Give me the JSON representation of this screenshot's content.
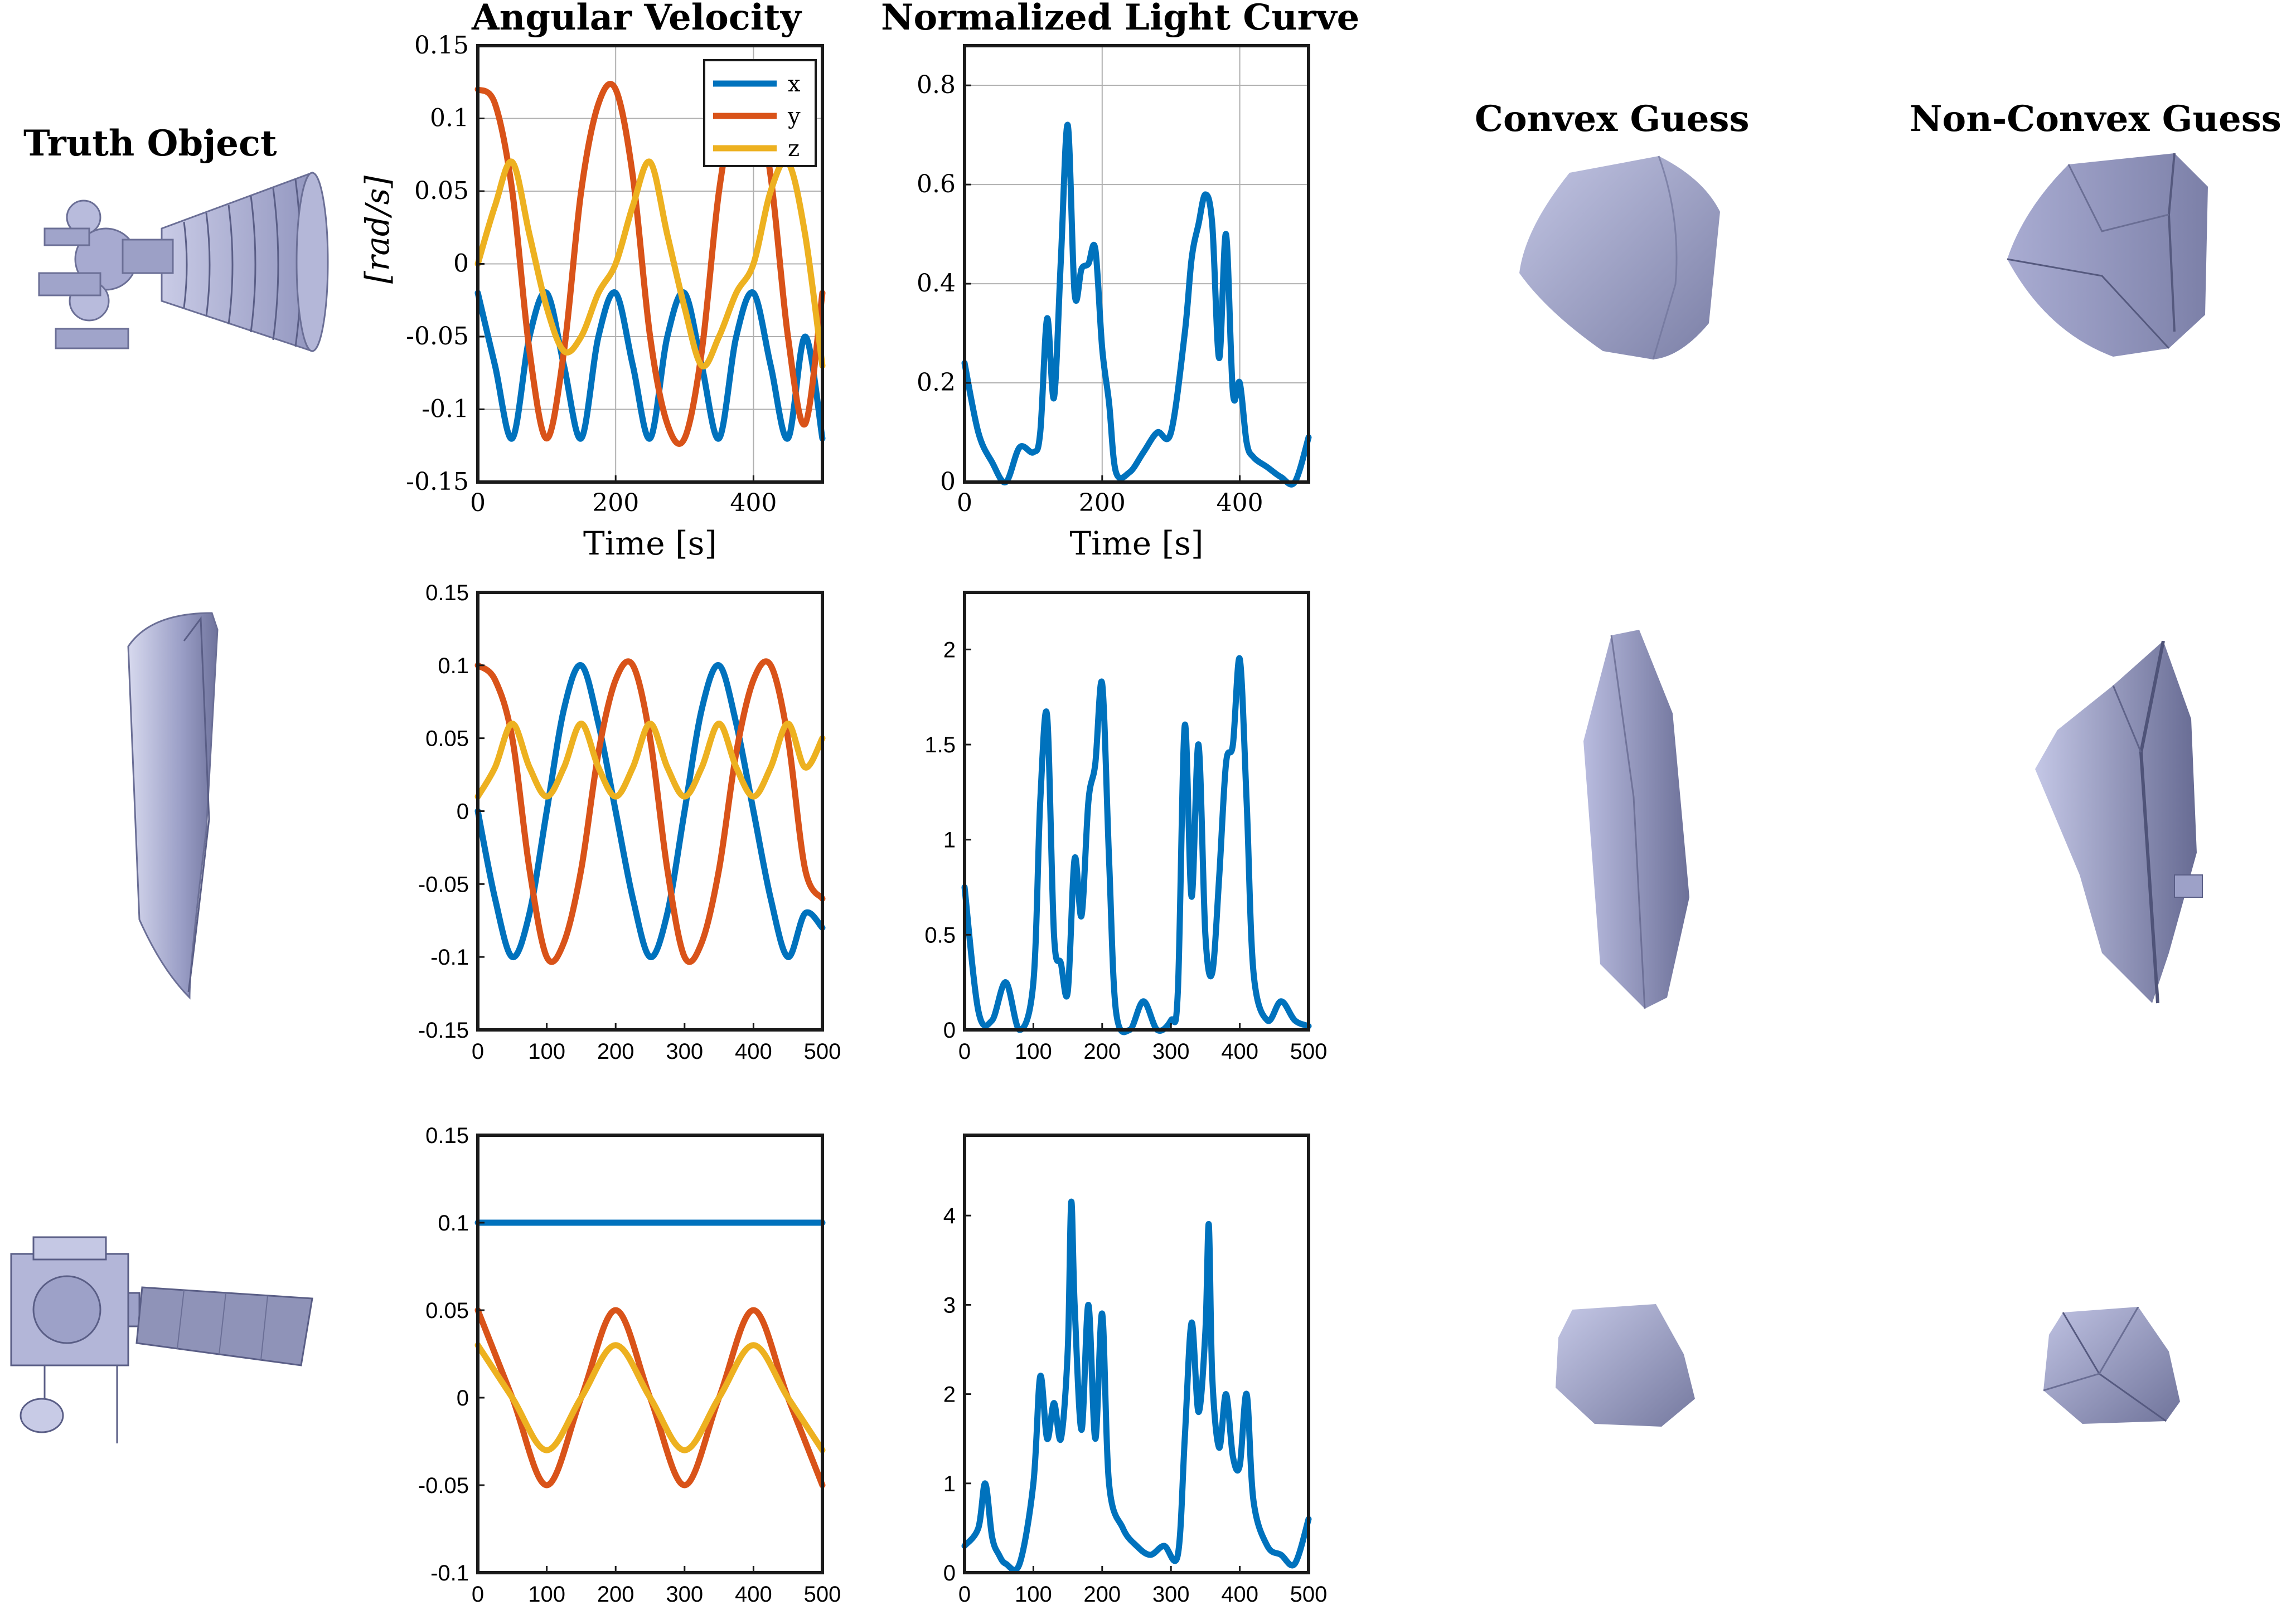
{
  "headers": {
    "truth": "Truth Object",
    "angular": "Angular Velocity",
    "light": "Normalized Light Curve",
    "convex": "Convex Guess",
    "nonconvex": "Non-Convex Guess"
  },
  "colors": {
    "x": "#0072BD",
    "y": "#D95319",
    "z": "#EDB120",
    "light": "#0072BD",
    "shape": "#9FA3C9",
    "shape_dark": "#5C607F"
  },
  "shape_icons": [
    "rocket-engine-icon",
    "rocket-fairing-icon",
    "satellite-icon",
    "convex-hull-icon",
    "non-convex-hull-icon"
  ],
  "chart_data": [
    {
      "type": "line",
      "row": 1,
      "panel": "angular-velocity",
      "xlabel": "Time [s]",
      "ylabel": "[rad/s]",
      "xlim": [
        0,
        500
      ],
      "ylim": [
        -0.15,
        0.15
      ],
      "xticks": [
        "0",
        "200",
        "400"
      ],
      "yticks": [
        "0.15",
        "0.1",
        "0.05",
        "0",
        "-0.05",
        "-0.1",
        "-0.15"
      ],
      "grid": true,
      "legend": "top-right",
      "x": [
        0,
        25,
        50,
        75,
        100,
        125,
        150,
        175,
        200,
        225,
        250,
        275,
        300,
        325,
        350,
        375,
        400,
        425,
        450,
        475,
        500
      ],
      "series": [
        {
          "name": "x",
          "values": [
            -0.02,
            -0.07,
            -0.12,
            -0.05,
            -0.02,
            -0.07,
            -0.12,
            -0.05,
            -0.02,
            -0.07,
            -0.12,
            -0.05,
            -0.02,
            -0.07,
            -0.12,
            -0.05,
            -0.02,
            -0.07,
            -0.12,
            -0.05,
            -0.12
          ]
        },
        {
          "name": "y",
          "values": [
            0.12,
            0.11,
            0.05,
            -0.06,
            -0.12,
            -0.06,
            0.05,
            0.11,
            0.12,
            0.06,
            -0.05,
            -0.11,
            -0.12,
            -0.06,
            0.05,
            0.11,
            0.12,
            0.06,
            -0.05,
            -0.11,
            -0.02
          ]
        },
        {
          "name": "z",
          "values": [
            0.0,
            0.04,
            0.07,
            0.02,
            -0.03,
            -0.06,
            -0.05,
            -0.02,
            0.0,
            0.04,
            0.07,
            0.02,
            -0.03,
            -0.07,
            -0.05,
            -0.02,
            0.0,
            0.05,
            0.07,
            0.02,
            -0.07
          ]
        }
      ]
    },
    {
      "type": "line",
      "row": 1,
      "panel": "light-curve",
      "xlabel": "Time [s]",
      "ylabel": "",
      "xlim": [
        0,
        500
      ],
      "ylim": [
        0,
        0.88
      ],
      "xticks": [
        "0",
        "200",
        "400"
      ],
      "yticks": [
        "0.8",
        "0.6",
        "0.4",
        "0.2",
        "0"
      ],
      "grid": true,
      "x": [
        0,
        20,
        40,
        60,
        80,
        100,
        110,
        120,
        130,
        140,
        150,
        160,
        170,
        180,
        190,
        200,
        210,
        220,
        240,
        260,
        280,
        300,
        320,
        330,
        340,
        350,
        360,
        370,
        380,
        390,
        400,
        410,
        420,
        440,
        460,
        480,
        500
      ],
      "series": [
        {
          "name": "",
          "values": [
            0.24,
            0.1,
            0.04,
            0.0,
            0.07,
            0.06,
            0.1,
            0.33,
            0.17,
            0.45,
            0.72,
            0.38,
            0.43,
            0.44,
            0.47,
            0.27,
            0.16,
            0.02,
            0.02,
            0.06,
            0.1,
            0.1,
            0.3,
            0.45,
            0.52,
            0.58,
            0.52,
            0.25,
            0.5,
            0.18,
            0.2,
            0.08,
            0.05,
            0.03,
            0.01,
            0.0,
            0.09
          ]
        }
      ]
    },
    {
      "type": "line",
      "row": 2,
      "panel": "angular-velocity",
      "xlim": [
        0,
        500
      ],
      "ylim": [
        -0.15,
        0.15
      ],
      "xticks": [
        "0",
        "100",
        "200",
        "300",
        "400",
        "500"
      ],
      "yticks": [
        "0.15",
        "0.1",
        "0.05",
        "0",
        "-0.05",
        "-0.1",
        "-0.15"
      ],
      "grid": false,
      "x": [
        0,
        25,
        50,
        75,
        100,
        125,
        150,
        175,
        200,
        225,
        250,
        275,
        300,
        325,
        350,
        375,
        400,
        425,
        450,
        475,
        500
      ],
      "series": [
        {
          "name": "x",
          "values": [
            0.0,
            -0.06,
            -0.1,
            -0.07,
            0.0,
            0.07,
            0.1,
            0.06,
            0.0,
            -0.06,
            -0.1,
            -0.07,
            0.0,
            0.07,
            0.1,
            0.06,
            0.0,
            -0.06,
            -0.1,
            -0.07,
            -0.08
          ]
        },
        {
          "name": "y",
          "values": [
            0.1,
            0.09,
            0.05,
            -0.04,
            -0.1,
            -0.09,
            -0.04,
            0.04,
            0.09,
            0.1,
            0.05,
            -0.04,
            -0.1,
            -0.09,
            -0.04,
            0.04,
            0.09,
            0.1,
            0.05,
            -0.04,
            -0.06
          ]
        },
        {
          "name": "z",
          "values": [
            0.01,
            0.03,
            0.06,
            0.03,
            0.01,
            0.03,
            0.06,
            0.03,
            0.01,
            0.03,
            0.06,
            0.03,
            0.01,
            0.03,
            0.06,
            0.03,
            0.01,
            0.03,
            0.06,
            0.03,
            0.05
          ]
        }
      ]
    },
    {
      "type": "line",
      "row": 2,
      "panel": "light-curve",
      "xlim": [
        0,
        500
      ],
      "ylim": [
        0,
        2.3
      ],
      "xticks": [
        "0",
        "100",
        "200",
        "300",
        "400",
        "500"
      ],
      "yticks": [
        "2",
        "1.5",
        "1",
        "0.5",
        "0"
      ],
      "grid": false,
      "x": [
        0,
        20,
        40,
        60,
        80,
        100,
        110,
        120,
        130,
        140,
        150,
        160,
        170,
        180,
        190,
        200,
        210,
        220,
        240,
        260,
        280,
        300,
        310,
        320,
        330,
        340,
        350,
        360,
        370,
        380,
        390,
        400,
        410,
        420,
        440,
        460,
        480,
        500
      ],
      "series": [
        {
          "name": "",
          "values": [
            0.75,
            0.1,
            0.05,
            0.25,
            0.0,
            0.25,
            1.2,
            1.65,
            0.5,
            0.35,
            0.2,
            0.9,
            0.6,
            1.2,
            1.4,
            1.82,
            0.9,
            0.1,
            0.0,
            0.15,
            0.0,
            0.05,
            0.2,
            1.6,
            0.7,
            1.5,
            0.5,
            0.3,
            0.8,
            1.4,
            1.5,
            1.95,
            1.2,
            0.3,
            0.05,
            0.15,
            0.05,
            0.02
          ]
        }
      ]
    },
    {
      "type": "line",
      "row": 3,
      "panel": "angular-velocity",
      "xlim": [
        0,
        500
      ],
      "ylim": [
        -0.1,
        0.15
      ],
      "xticks": [
        "0",
        "100",
        "200",
        "300",
        "400",
        "500"
      ],
      "yticks": [
        "0.15",
        "0.1",
        "0.05",
        "0",
        "-0.05",
        "-0.1"
      ],
      "grid": false,
      "x": [
        0,
        50,
        100,
        150,
        200,
        250,
        300,
        350,
        400,
        450,
        500
      ],
      "series": [
        {
          "name": "x",
          "values": [
            0.1,
            0.1,
            0.1,
            0.1,
            0.1,
            0.1,
            0.1,
            0.1,
            0.1,
            0.1,
            0.1
          ]
        },
        {
          "name": "y",
          "values": [
            0.05,
            0.0,
            -0.05,
            0.0,
            0.05,
            0.0,
            -0.05,
            0.0,
            0.05,
            0.0,
            -0.05
          ]
        },
        {
          "name": "z",
          "values": [
            0.03,
            0.0,
            -0.03,
            0.0,
            0.03,
            0.0,
            -0.03,
            0.0,
            0.03,
            0.0,
            -0.03
          ]
        }
      ]
    },
    {
      "type": "line",
      "row": 3,
      "panel": "light-curve",
      "xlim": [
        0,
        500
      ],
      "ylim": [
        0,
        4.9
      ],
      "xticks": [
        "0",
        "100",
        "200",
        "300",
        "400",
        "500"
      ],
      "yticks": [
        "4",
        "3",
        "2",
        "1",
        "0"
      ],
      "grid": false,
      "x": [
        0,
        20,
        30,
        40,
        50,
        60,
        80,
        100,
        110,
        120,
        130,
        140,
        150,
        155,
        160,
        170,
        180,
        190,
        200,
        210,
        230,
        250,
        270,
        290,
        310,
        320,
        330,
        340,
        350,
        355,
        360,
        370,
        380,
        390,
        400,
        410,
        420,
        440,
        460,
        480,
        500
      ],
      "series": [
        {
          "name": "",
          "values": [
            0.3,
            0.5,
            1.0,
            0.4,
            0.2,
            0.1,
            0.1,
            1.0,
            2.2,
            1.5,
            1.9,
            1.5,
            2.5,
            4.15,
            3.0,
            1.6,
            3.0,
            1.5,
            2.9,
            1.0,
            0.5,
            0.3,
            0.2,
            0.3,
            0.2,
            1.5,
            2.8,
            1.8,
            2.7,
            3.9,
            2.2,
            1.4,
            2.0,
            1.3,
            1.2,
            2.0,
            0.8,
            0.3,
            0.2,
            0.1,
            0.6
          ]
        }
      ]
    }
  ]
}
